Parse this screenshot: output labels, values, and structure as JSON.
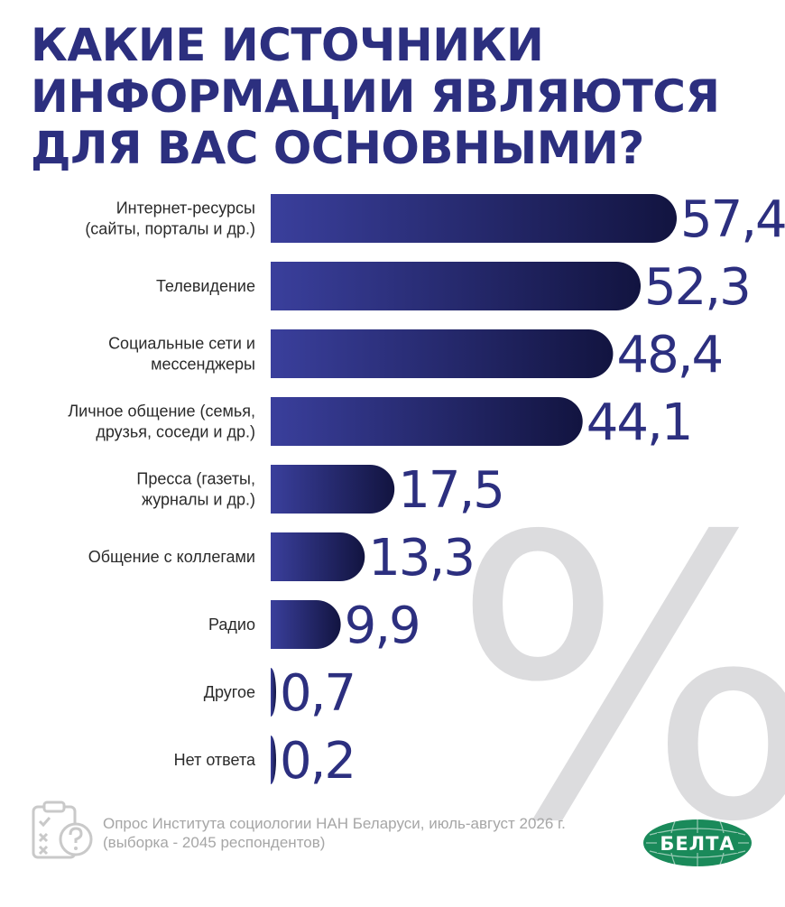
{
  "title": "КАКИЕ ИСТОЧНИКИ ИНФОРМАЦИИ ЯВЛЯЮТСЯ ДЛЯ ВАС ОСНОВНЫМИ?",
  "background_symbol": "%",
  "chart_data": {
    "type": "bar",
    "orientation": "horizontal",
    "categories": [
      [
        "Интернет-ресурсы",
        "(сайты, порталы и др.)"
      ],
      [
        "Телевидение"
      ],
      [
        "Социальные сети и",
        "мессенджеры"
      ],
      [
        "Личное общение (семья,",
        "друзья, соседи и др.)"
      ],
      [
        "Пресса (газеты,",
        "журналы и др.)"
      ],
      [
        "Общение с коллегами"
      ],
      [
        "Радио"
      ],
      [
        "Другое"
      ],
      [
        "Нет ответа"
      ]
    ],
    "values": [
      57.4,
      52.3,
      48.4,
      44.1,
      17.5,
      13.3,
      9.9,
      0.7,
      0.2
    ],
    "value_labels": [
      "57,4",
      "52,3",
      "48,4",
      "44,1",
      "17,5",
      "13,3",
      "9,9",
      "0,7",
      "0,2"
    ],
    "xlim": [
      0,
      57.4
    ],
    "grid": false,
    "colors": {
      "bar_start": "#3a3f9c",
      "bar_end": "#121440",
      "value_text": "#2c2f7f"
    }
  },
  "footer": {
    "source_line1": "Опрос Института социологии НАН Беларуси, июль-август 2026 г.",
    "source_line2": "(выборка - 2045 респондентов)",
    "icon": "clipboard-question-icon",
    "logo_text": "БЕЛТА",
    "logo_color": "#1a8a5a"
  }
}
